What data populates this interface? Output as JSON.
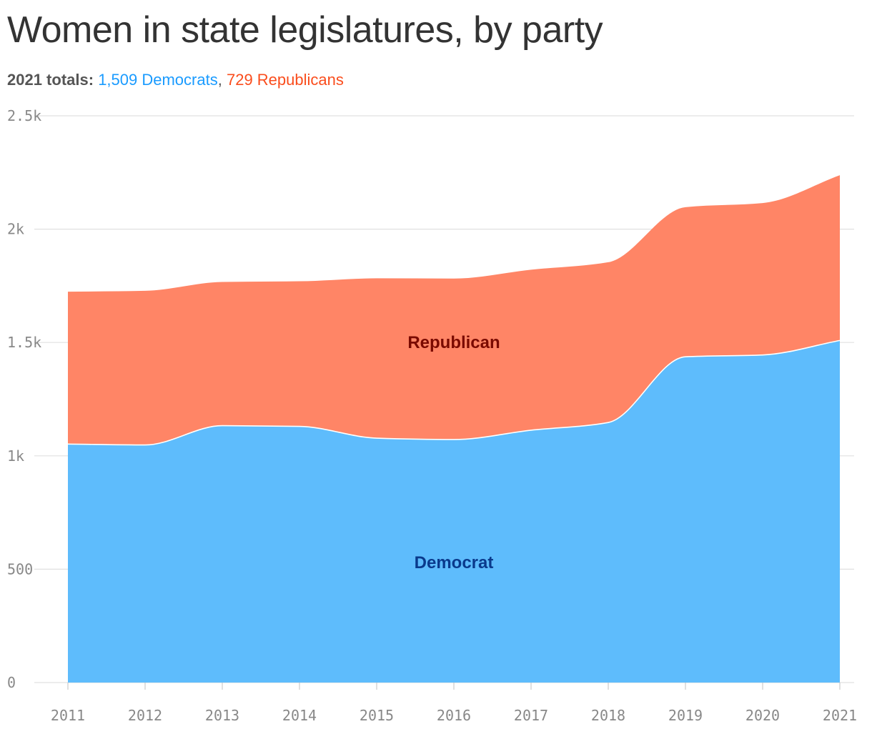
{
  "title": "Women in state legislatures, by party",
  "subtitle": {
    "lead": "2021 totals:",
    "democrats": "1,509 Democrats",
    "separator": ",",
    "republicans": "729 Republicans"
  },
  "colors": {
    "democrat_area": "#5ebcfc",
    "democrat_label": "#0a3a8c",
    "republican_area": "#ff8566",
    "republican_label": "#7a0a00",
    "democrat_text": "#1a9bff",
    "republican_text": "#fa4d1d",
    "grid": "#e0e0e0"
  },
  "chart_data": {
    "type": "area",
    "stacked": true,
    "title": "Women in state legislatures, by party",
    "xlabel": "",
    "ylabel": "",
    "x": [
      "2011",
      "2012",
      "2013",
      "2014",
      "2015",
      "2016",
      "2017",
      "2018",
      "2019",
      "2020",
      "2021"
    ],
    "ylim": [
      0,
      2500
    ],
    "yticks": [
      0,
      500,
      1000,
      1500,
      2000,
      2500
    ],
    "ytick_labels": [
      "0",
      "500",
      "1k",
      "1.5k",
      "2k",
      "2.5k"
    ],
    "grid": true,
    "series": [
      {
        "name": "Democrat",
        "values": [
          1052,
          1048,
          1133,
          1130,
          1078,
          1072,
          1113,
          1147,
          1437,
          1445,
          1509
        ]
      },
      {
        "name": "Republican",
        "values": [
          672,
          680,
          634,
          640,
          705,
          710,
          708,
          707,
          660,
          670,
          729
        ]
      }
    ],
    "area_labels": [
      {
        "series": "Republican",
        "text": "Republican",
        "x": "2016",
        "y": 1500
      },
      {
        "series": "Democrat",
        "text": "Democrat",
        "x": "2016",
        "y": 530
      }
    ]
  }
}
